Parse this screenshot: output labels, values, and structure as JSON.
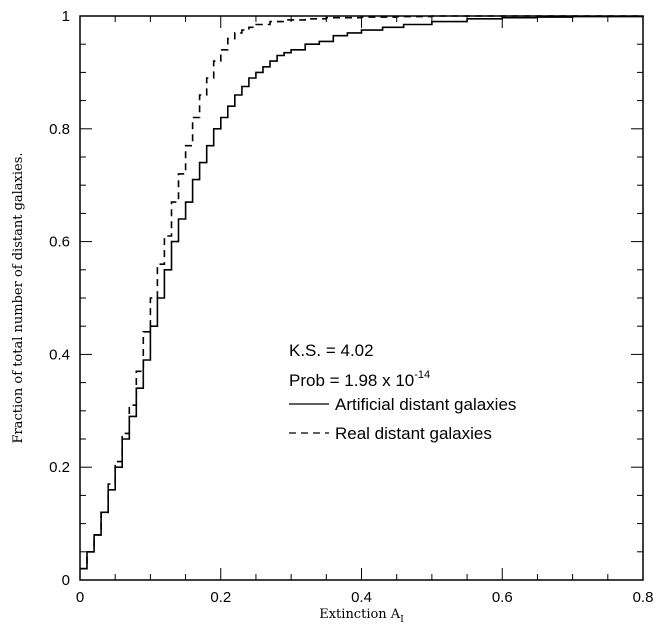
{
  "chart_data": {
    "type": "line",
    "xlabel": "Extinction A",
    "xlabel_sub": "I",
    "ylabel": "Fraction of total number of distant galaxies.",
    "xlim": [
      0,
      0.8
    ],
    "ylim": [
      0,
      1
    ],
    "x_ticks": [
      "0",
      "0.2",
      "0.4",
      "0.6",
      "0.8"
    ],
    "y_ticks": [
      "0",
      "0.2",
      "0.4",
      "0.6",
      "0.8",
      "1"
    ],
    "grid": false,
    "annotations": {
      "ks": "K.S. = 4.02",
      "prob_prefix": "Prob = 1.98 x 10",
      "prob_exponent": "-14"
    },
    "series": [
      {
        "name": "Artificial distant galaxies",
        "style": "solid",
        "x": [
          0,
          0.01,
          0.02,
          0.03,
          0.04,
          0.05,
          0.06,
          0.07,
          0.08,
          0.09,
          0.1,
          0.11,
          0.12,
          0.13,
          0.14,
          0.15,
          0.16,
          0.17,
          0.18,
          0.19,
          0.2,
          0.21,
          0.22,
          0.23,
          0.24,
          0.25,
          0.26,
          0.27,
          0.28,
          0.29,
          0.3,
          0.32,
          0.34,
          0.36,
          0.38,
          0.4,
          0.43,
          0.46,
          0.5,
          0.55,
          0.6,
          0.65,
          0.7,
          0.8
        ],
        "y": [
          0.02,
          0.05,
          0.08,
          0.12,
          0.16,
          0.2,
          0.25,
          0.29,
          0.34,
          0.39,
          0.45,
          0.5,
          0.55,
          0.6,
          0.64,
          0.67,
          0.71,
          0.74,
          0.77,
          0.8,
          0.82,
          0.84,
          0.86,
          0.875,
          0.89,
          0.9,
          0.91,
          0.92,
          0.93,
          0.935,
          0.94,
          0.95,
          0.955,
          0.965,
          0.97,
          0.975,
          0.98,
          0.985,
          0.99,
          0.995,
          0.997,
          0.998,
          0.999,
          1.0
        ]
      },
      {
        "name": "Real distant galaxies",
        "style": "dashed",
        "x": [
          0,
          0.01,
          0.02,
          0.03,
          0.04,
          0.05,
          0.06,
          0.07,
          0.08,
          0.09,
          0.1,
          0.11,
          0.12,
          0.13,
          0.14,
          0.15,
          0.16,
          0.17,
          0.18,
          0.19,
          0.2,
          0.21,
          0.22,
          0.23,
          0.24,
          0.25,
          0.27,
          0.29,
          0.32,
          0.35,
          0.4,
          0.45,
          0.5,
          0.6,
          0.8
        ],
        "y": [
          0.02,
          0.05,
          0.08,
          0.12,
          0.17,
          0.21,
          0.26,
          0.31,
          0.37,
          0.44,
          0.5,
          0.56,
          0.61,
          0.67,
          0.72,
          0.77,
          0.82,
          0.86,
          0.89,
          0.92,
          0.94,
          0.96,
          0.97,
          0.975,
          0.98,
          0.985,
          0.99,
          0.993,
          0.995,
          0.997,
          0.998,
          0.999,
          1.0,
          1.0,
          1.0
        ]
      }
    ]
  }
}
